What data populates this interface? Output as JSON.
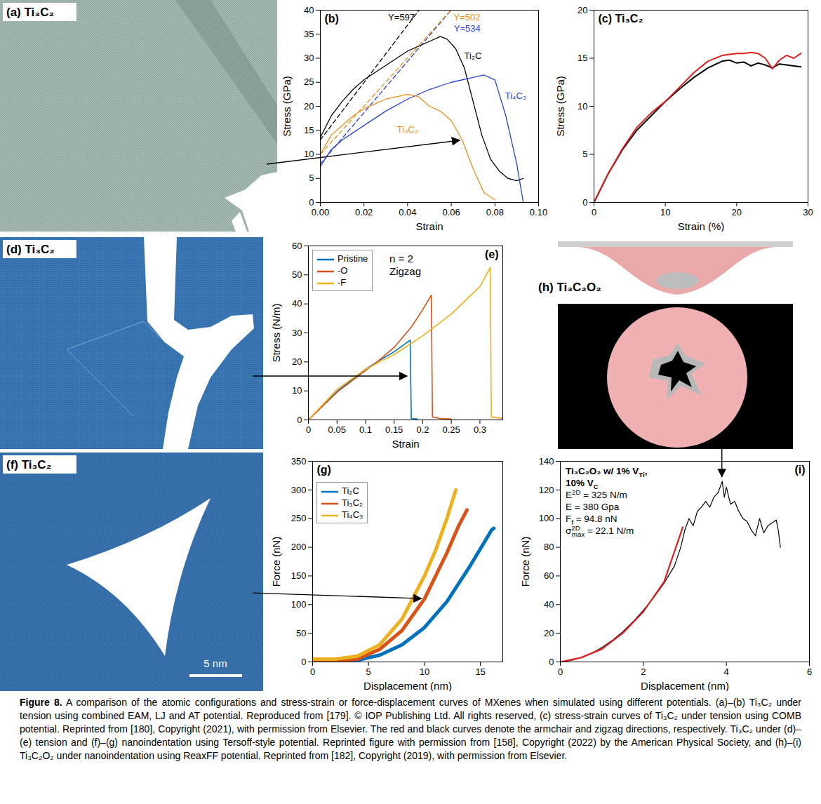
{
  "images": [
    {
      "label": "(a) Ti₃C₂"
    },
    {
      "label": "(d) Ti₃C₂"
    },
    {
      "label": "(f) Ti₃C₂",
      "scale_bar": "5 nm"
    },
    {
      "label": "(h) Ti₃C₂O₂"
    }
  ],
  "chart_data": [
    {
      "type": "line",
      "title": "(b)",
      "x_label": "Strain",
      "y_label": "Stress (GPa)",
      "xlim": [
        0,
        0.1
      ],
      "xticks": [
        {
          "value": 0,
          "label": "0.00"
        },
        0.02,
        0.04,
        0.06,
        0.08,
        {
          "value": 0.1,
          "label": "0.10"
        }
      ],
      "ylim": [
        0,
        40
      ],
      "yticks": [
        0,
        5,
        10,
        15,
        20,
        25,
        30,
        35,
        40
      ],
      "series": [
        {
          "name": "Ti₂C",
          "color": "#000000",
          "x": [
            0,
            0.005,
            0.01,
            0.015,
            0.02,
            0.025,
            0.03,
            0.035,
            0.04,
            0.045,
            0.05,
            0.055,
            0.058,
            0.062,
            0.066,
            0.07,
            0.074,
            0.078,
            0.082,
            0.086,
            0.09,
            0.093
          ],
          "values": [
            13.5,
            18,
            21,
            23.5,
            25.5,
            27,
            28.5,
            30,
            31.5,
            32.5,
            33.5,
            34.5,
            34,
            32,
            28,
            21,
            14,
            9,
            6.5,
            5,
            4.5,
            5
          ]
        },
        {
          "name": "Ti₄C₃",
          "color": "#2b3fd6",
          "x": [
            0,
            0.005,
            0.01,
            0.02,
            0.03,
            0.04,
            0.05,
            0.06,
            0.07,
            0.075,
            0.08,
            0.085,
            0.09,
            0.093
          ],
          "values": [
            7.5,
            11,
            13,
            16,
            19,
            21.5,
            23.5,
            25,
            26,
            26.5,
            25.5,
            18,
            8,
            0
          ]
        },
        {
          "name": "Ti₃C₂",
          "color": "#f28e1c",
          "x": [
            0,
            0.005,
            0.01,
            0.015,
            0.02,
            0.025,
            0.03,
            0.035,
            0.04,
            0.045,
            0.05,
            0.055,
            0.06,
            0.065,
            0.07,
            0.075,
            0.08
          ],
          "values": [
            10,
            14,
            16,
            18,
            19.5,
            20.5,
            21.5,
            22,
            22.5,
            22,
            20,
            19,
            17,
            13,
            7,
            2,
            0.5
          ]
        },
        {
          "name": "Y=597",
          "color": "#000000",
          "line_style": "dashed",
          "x": [
            0,
            0.0452
          ],
          "values": [
            13,
            40
          ]
        },
        {
          "name": "Y=534",
          "color": "#2b3fd6",
          "line_style": "dashed",
          "x": [
            0,
            0.0599
          ],
          "values": [
            8,
            40
          ]
        },
        {
          "name": "Y=502",
          "color": "#f28e1c",
          "line_style": "dashed",
          "x": [
            0,
            0.0598
          ],
          "values": [
            10,
            40
          ]
        }
      ]
    },
    {
      "type": "line",
      "title": "(c) Ti₃C₂",
      "x_label": "Strain (%)",
      "y_label": "Stress (GPa)",
      "xlim": [
        0,
        30
      ],
      "xticks": [
        0,
        10,
        20,
        30
      ],
      "ylim": [
        0,
        20
      ],
      "yticks": [
        0,
        5,
        10,
        15,
        20
      ],
      "x": [
        0,
        2,
        4,
        6,
        8,
        10,
        12,
        14,
        16,
        18,
        19,
        20,
        21,
        22,
        23,
        24,
        25,
        26,
        27,
        28,
        29
      ],
      "series": [
        {
          "color": "#000000",
          "values": [
            0,
            3,
            5.5,
            7.5,
            9,
            10.5,
            11.8,
            13,
            14,
            14.7,
            14.8,
            14.5,
            14.6,
            14.2,
            14.5,
            14.3,
            14,
            14.4,
            14.3,
            14.2,
            14.1
          ]
        },
        {
          "color": "#e02020",
          "values": [
            0,
            3,
            5.6,
            7.8,
            9.3,
            10.5,
            12,
            13.5,
            14.7,
            15.3,
            15.4,
            15.5,
            15.5,
            15.6,
            15.5,
            15,
            13.9,
            14.8,
            15.3,
            15,
            15.5
          ]
        }
      ]
    },
    {
      "type": "line",
      "title": "(e)",
      "x_label": "Strain",
      "y_label": "Stress (N/m)",
      "xlim": [
        0,
        0.34
      ],
      "xticks": [
        0,
        0.05,
        0.1,
        0.15,
        0.2,
        0.25,
        0.3
      ],
      "ylim": [
        0,
        60
      ],
      "yticks": [
        0,
        10,
        20,
        30,
        40,
        50,
        60
      ],
      "legend": "top-left",
      "annotations": [
        "n = 2",
        "Zigzag"
      ],
      "series": [
        {
          "name": "Pristine",
          "color": "#0072bd",
          "x": [
            0,
            0.05,
            0.1,
            0.12,
            0.15,
            0.178,
            0.18,
            0.19
          ],
          "values": [
            0,
            9.8,
            17.5,
            20,
            23.5,
            27.5,
            0.5,
            0.3
          ]
        },
        {
          "name": "-O",
          "color": "#d95319",
          "x": [
            0,
            0.05,
            0.1,
            0.12,
            0.15,
            0.18,
            0.2,
            0.215,
            0.217,
            0.23,
            0.25
          ],
          "values": [
            0,
            9.5,
            17,
            20,
            25,
            32,
            38,
            43,
            1,
            0.5,
            0.3
          ]
        },
        {
          "name": "-F",
          "color": "#edb120",
          "x": [
            0,
            0.05,
            0.1,
            0.12,
            0.15,
            0.2,
            0.25,
            0.3,
            0.318,
            0.32,
            0.34
          ],
          "values": [
            0,
            10.5,
            17.5,
            19.5,
            22.5,
            29,
            36.5,
            46,
            52.5,
            1,
            0.5
          ]
        }
      ]
    },
    {
      "type": "line",
      "title": "(g)",
      "x_label": "Displacement (nm)",
      "y_label": "Force (nN)",
      "xlim": [
        0,
        17
      ],
      "xticks": [
        0,
        5,
        10,
        15
      ],
      "ylim": [
        0,
        350
      ],
      "yticks": [
        0,
        50,
        100,
        150,
        200,
        250,
        300,
        350
      ],
      "legend": "top-left",
      "series": [
        {
          "name": "Ti₂C",
          "color": "#0072bd",
          "x": [
            0,
            2,
            4,
            6,
            8,
            10,
            12,
            14,
            16,
            16.2
          ],
          "values": [
            0,
            0,
            3,
            12,
            30,
            60,
            105,
            165,
            230,
            233
          ]
        },
        {
          "name": "Ti₃C₂",
          "color": "#d95319",
          "x": [
            0,
            2,
            4,
            6,
            8,
            10,
            12,
            13,
            13.8
          ],
          "values": [
            2,
            2,
            5,
            22,
            55,
            110,
            190,
            235,
            265
          ]
        },
        {
          "name": "Ti₄C₃",
          "color": "#edb120",
          "x": [
            0,
            2,
            4,
            6,
            8,
            10,
            11,
            12,
            12.8
          ],
          "values": [
            5,
            5,
            10,
            30,
            75,
            150,
            195,
            250,
            300
          ]
        }
      ]
    },
    {
      "type": "line",
      "title": "(i)",
      "x_label": "Displacement (nm)",
      "y_label": "Force (nN)",
      "xlim": [
        0,
        6
      ],
      "xticks": [
        0,
        2,
        4,
        6
      ],
      "ylim": [
        0,
        140
      ],
      "yticks": [
        0,
        20,
        40,
        60,
        80,
        100,
        120,
        140
      ],
      "annotations": [
        [
          {
            "text": "Ti₃C₂O₂ w/ 1% V"
          },
          {
            "text": "Ti",
            "sub": true
          },
          {
            "text": ","
          }
        ],
        [
          {
            "text": "10% V"
          },
          {
            "text": "C",
            "sub": true
          }
        ],
        [
          {
            "text": "E"
          },
          {
            "text": "2D",
            "sup": true
          },
          {
            "text": " = 325 N/m"
          }
        ],
        [
          {
            "text": "E = 380 Gpa"
          }
        ],
        [
          {
            "text": "F"
          },
          {
            "text": "f",
            "sub": true
          },
          {
            "text": " = 94.8 nN"
          }
        ],
        [
          {
            "text": "σ"
          },
          {
            "text": "2D",
            "sup": true
          },
          {
            "text": "max",
            "sub": true
          },
          {
            "text": " = 22.1 N/m"
          }
        ]
      ],
      "series": [
        {
          "color": "#000000",
          "x": [
            0,
            0.25,
            0.5,
            0.75,
            1,
            1.25,
            1.5,
            1.75,
            2,
            2.25,
            2.5,
            2.75,
            2.9,
            3,
            3.1,
            3.2,
            3.3,
            3.4,
            3.5,
            3.6,
            3.7,
            3.8,
            3.9,
            3.95,
            4,
            4.1,
            4.2,
            4.3,
            4.4,
            4.5,
            4.6,
            4.7,
            4.8,
            4.9,
            5,
            5.1,
            5.2,
            5.25,
            5.3
          ],
          "values": [
            0,
            1,
            3,
            6,
            10,
            15,
            21,
            28,
            36,
            45,
            55,
            67,
            80,
            92,
            100,
            95,
            105,
            108,
            112,
            108,
            115,
            118,
            126,
            115,
            122,
            110,
            112,
            105,
            100,
            98,
            92,
            88,
            100,
            90,
            95,
            97,
            99,
            92,
            80
          ]
        },
        {
          "color": "#e02020",
          "x": [
            0,
            0.5,
            1,
            1.5,
            2,
            2.5,
            2.95
          ],
          "values": [
            0,
            3,
            9,
            20,
            35,
            56,
            94
          ]
        }
      ]
    }
  ],
  "caption": {
    "label": "Figure 8.",
    "text": "A comparison of the atomic configurations and stress-strain or force-displacement curves of MXenes when simulated using different potentials. (a)–(b) Ti₃C₂ under tension using combined EAM, LJ and AT potential. Reproduced from [179]. © IOP Publishing Ltd. All rights reserved, (c) stress-strain curves of Ti₃C₂ under tension using COMB potential. Reprinted from [180], Copyright (2021), with permission from Elsevier. The red and black curves denote the armchair and zigzag directions, respectively. Ti₃C₂ under (d)–(e) tension and (f)–(g) nanoindentation using Tersoff-style potential. Reprinted figure with permission from [158], Copyright (2022) by the American Physical Society, and (h)–(i) Ti₃C₂O₂ under nanoindentation using ReaxFF potential. Reprinted from [182], Copyright (2019), with permission from Elsevier."
  }
}
